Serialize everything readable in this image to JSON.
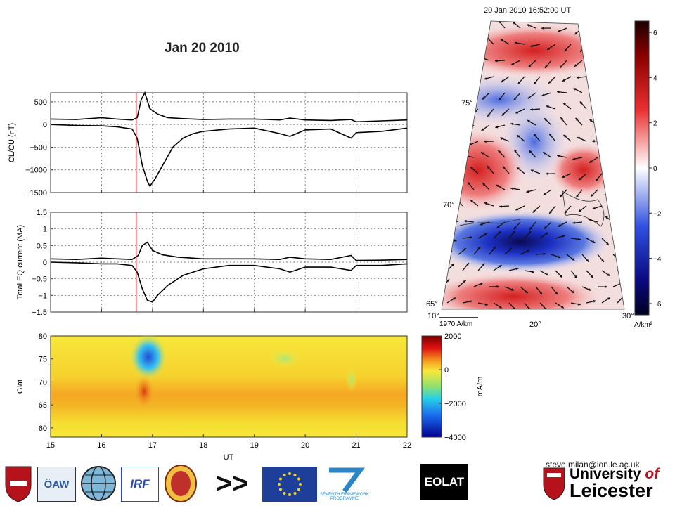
{
  "slide": {
    "title": "Jan 20 2010",
    "email": "steve.milan@ion.le.ac.uk"
  },
  "colors": {
    "event_line": "#e8221c",
    "trace": "#000000",
    "grid": "#555555",
    "eu_blue": "#1d3f9a",
    "eu_star": "#f4d21e",
    "leicester_red": "#b5121b"
  },
  "chart_data": [
    {
      "type": "line",
      "title": "",
      "xlabel": "",
      "ylabel": "CL/CU (nT)",
      "xlim": [
        15,
        22
      ],
      "ylim": [
        -1500,
        700
      ],
      "yticks": [
        500,
        0,
        -500,
        -1000,
        -1500
      ],
      "ytick_labels": [
        "500",
        "0",
        "−500",
        "−1000",
        "−1500"
      ],
      "xticks": [
        15,
        16,
        17,
        18,
        19,
        20,
        21,
        22
      ],
      "grid": true,
      "event_time": 16.68,
      "series": [
        {
          "x": [
            15.0,
            15.5,
            16.0,
            16.3,
            16.6,
            16.7,
            16.78,
            16.85,
            16.95,
            17.1,
            17.3,
            17.6,
            18.0,
            18.5,
            19.0,
            19.5,
            19.7,
            20.0,
            20.5,
            20.9,
            21.0,
            21.5,
            22.0
          ],
          "values": [
            120,
            110,
            150,
            120,
            100,
            150,
            550,
            700,
            350,
            230,
            150,
            130,
            110,
            120,
            120,
            100,
            140,
            100,
            90,
            110,
            60,
            80,
            100
          ]
        },
        {
          "x": [
            15.0,
            15.5,
            16.0,
            16.3,
            16.6,
            16.7,
            16.8,
            16.9,
            16.95,
            17.05,
            17.2,
            17.4,
            17.6,
            17.8,
            18.0,
            18.5,
            19.0,
            19.5,
            19.7,
            20.0,
            20.5,
            20.9,
            21.0,
            21.5,
            22.0
          ],
          "values": [
            0,
            -20,
            -30,
            -50,
            -100,
            -300,
            -900,
            -1250,
            -1360,
            -1200,
            -900,
            -500,
            -300,
            -200,
            -150,
            -100,
            -80,
            -200,
            -260,
            -120,
            -100,
            -300,
            -180,
            -150,
            -80
          ]
        }
      ]
    },
    {
      "type": "line",
      "title": "",
      "xlabel": "",
      "ylabel": "Total EQ current (MA)",
      "xlim": [
        15,
        22
      ],
      "ylim": [
        -1.5,
        1.5
      ],
      "yticks": [
        1.5,
        1,
        0.5,
        0,
        -0.5,
        -1,
        -1.5
      ],
      "ytick_labels": [
        "1.5",
        "1",
        "0.5",
        "0",
        "−0.5",
        "−1",
        "−1.5"
      ],
      "xticks": [
        15,
        16,
        17,
        18,
        19,
        20,
        21,
        22
      ],
      "grid": true,
      "event_time": 16.68,
      "series": [
        {
          "x": [
            15.0,
            15.5,
            16.0,
            16.3,
            16.6,
            16.72,
            16.8,
            16.9,
            17.0,
            17.2,
            17.5,
            18.0,
            18.5,
            19.0,
            19.5,
            19.7,
            20.0,
            20.5,
            20.9,
            21.0,
            21.5,
            22.0
          ],
          "values": [
            0.1,
            0.08,
            0.12,
            0.1,
            0.08,
            0.2,
            0.5,
            0.6,
            0.35,
            0.22,
            0.15,
            0.1,
            0.1,
            0.1,
            0.08,
            0.15,
            0.1,
            0.08,
            0.2,
            0.05,
            0.06,
            0.08
          ]
        },
        {
          "x": [
            15.0,
            15.5,
            16.0,
            16.3,
            16.6,
            16.7,
            16.8,
            16.9,
            17.0,
            17.1,
            17.3,
            17.6,
            18.0,
            18.5,
            19.0,
            19.5,
            19.7,
            20.0,
            20.5,
            20.9,
            21.0,
            21.5,
            22.0
          ],
          "values": [
            0.0,
            -0.02,
            -0.05,
            -0.05,
            -0.1,
            -0.3,
            -0.8,
            -1.15,
            -1.2,
            -1.0,
            -0.7,
            -0.4,
            -0.2,
            -0.1,
            -0.1,
            -0.2,
            -0.3,
            -0.15,
            -0.15,
            -0.25,
            -0.1,
            -0.1,
            -0.05
          ]
        }
      ]
    },
    {
      "type": "heatmap",
      "title": "",
      "xlabel": "UT",
      "ylabel": "Glat",
      "xlim": [
        15,
        22
      ],
      "ylim": [
        58,
        80
      ],
      "yticks": [
        80,
        75,
        70,
        65,
        60
      ],
      "xticks": [
        15,
        16,
        17,
        18,
        19,
        20,
        21,
        22
      ],
      "colorbar": {
        "label": "mA/m",
        "range": [
          -4000,
          2000
        ],
        "ticks": [
          "2000",
          "0",
          "−2000",
          "−4000"
        ]
      }
    },
    {
      "type": "heatmap",
      "title": "20 Jan 2010 16:52:00 UT",
      "colorbar": {
        "label": "A/km²",
        "range": [
          -6.5,
          6.5
        ],
        "ticks": [
          "6",
          "4",
          "2",
          "0",
          "−2",
          "−4",
          "−6"
        ]
      },
      "lat_labels": [
        "75°",
        "70°",
        "65°"
      ],
      "lon_labels": [
        "10°",
        "20°",
        "30°"
      ],
      "vector_scale": "1970 A/km"
    }
  ],
  "logos": [
    "vivat-crest",
    "oaw",
    "globe-logo",
    "irf",
    "crest-2",
    "arrows",
    "eu-flag",
    "fp7",
    "eolat",
    "leicester"
  ],
  "logo_text": {
    "oaw": "ÖAW",
    "irf": "IRF",
    "arrows": ">>",
    "fp7_sub": "SEVENTH FRAMEWORK PROGRAMME",
    "eolat": "EOLAT",
    "leicester_1": "University",
    "leicester_of": "of",
    "leicester_2": "Leicester"
  }
}
